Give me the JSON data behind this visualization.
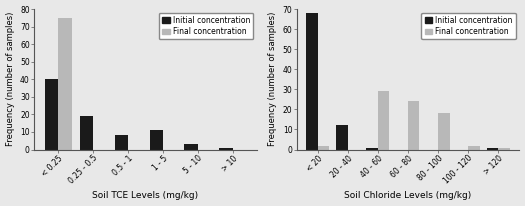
{
  "tce": {
    "categories": [
      "< 0.25",
      "0.25 - 0.5",
      "0.5 - 1",
      "1 - 5",
      "5 - 10",
      "> 10"
    ],
    "initial": [
      40,
      19,
      8,
      11,
      3,
      1
    ],
    "final": [
      75,
      0,
      0,
      0,
      0,
      0
    ],
    "ylim": [
      0,
      80
    ],
    "yticks": [
      0,
      10,
      20,
      30,
      40,
      50,
      60,
      70,
      80
    ],
    "xlabel": "Soil TCE Levels (mg/kg)",
    "ylabel": "Frequency (number of samples)"
  },
  "chloride": {
    "categories": [
      "< 20",
      "20 - 40",
      "40 - 60",
      "60 - 80",
      "80 - 100",
      "100 - 120",
      "> 120"
    ],
    "initial": [
      68,
      12,
      1,
      0,
      0,
      0,
      1
    ],
    "final": [
      2,
      0,
      29,
      24,
      18,
      2,
      1
    ],
    "ylim": [
      0,
      70
    ],
    "yticks": [
      0,
      10,
      20,
      30,
      40,
      50,
      60,
      70
    ],
    "xlabel": "Soil Chloride Levels (mg/kg)",
    "ylabel": "Frequency (number of samples)"
  },
  "bar_width": 0.38,
  "initial_color": "#1a1a1a",
  "final_color": "#b8b8b8",
  "legend_initial": "Initial concentration",
  "legend_final": "Final concentration",
  "background_color": "#e8e8e8",
  "tick_fontsize": 5.5,
  "label_fontsize": 6.5,
  "legend_fontsize": 5.5,
  "ylabel_fontsize": 6.0
}
